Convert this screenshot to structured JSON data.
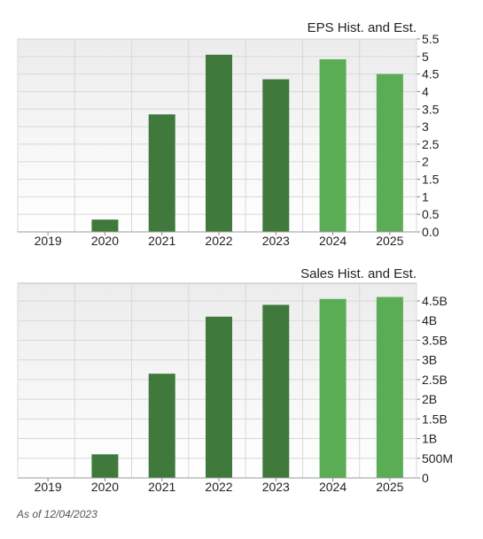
{
  "footer": {
    "as_of": "As of 12/04/2023"
  },
  "colors": {
    "historical": "#3f7a3c",
    "estimate": "#5aac55",
    "grid": "#d8d8d8",
    "frame": "#bfbfbf"
  },
  "chart_data": [
    {
      "type": "bar",
      "title": "EPS Hist. and Est.",
      "categories": [
        "2019",
        "2020",
        "2021",
        "2022",
        "2023",
        "2024",
        "2025"
      ],
      "values": [
        0,
        0.35,
        3.35,
        5.05,
        4.35,
        4.92,
        4.5
      ],
      "kind": [
        "historical",
        "historical",
        "historical",
        "historical",
        "historical",
        "estimate",
        "estimate"
      ],
      "ylim": [
        0,
        5.5
      ],
      "yticks": [
        0,
        0.5,
        1,
        1.5,
        2,
        2.5,
        3,
        3.5,
        4,
        4.5,
        5,
        5.5
      ],
      "yticklabels": [
        "0.0",
        "0.5",
        "1",
        "1.5",
        "2",
        "2.5",
        "3",
        "3.5",
        "4",
        "4.5",
        "5",
        "5.5"
      ],
      "xlabel": "",
      "ylabel": "",
      "grid": true,
      "axis_position": "right"
    },
    {
      "type": "bar",
      "title": "Sales Hist. and Est.",
      "categories": [
        "2019",
        "2020",
        "2021",
        "2022",
        "2023",
        "2024",
        "2025"
      ],
      "values": [
        0,
        0.6,
        2.65,
        4.1,
        4.4,
        4.55,
        4.6
      ],
      "kind": [
        "historical",
        "historical",
        "historical",
        "historical",
        "historical",
        "estimate",
        "estimate"
      ],
      "ylim": [
        0,
        4.5
      ],
      "yticks": [
        0,
        0.5,
        1,
        1.5,
        2,
        2.5,
        3,
        3.5,
        4,
        4.5
      ],
      "yticklabels": [
        "0",
        "500M",
        "1B",
        "1.5B",
        "2B",
        "2.5B",
        "3B",
        "3.5B",
        "4B",
        "4.5B"
      ],
      "units": "B",
      "xlabel": "",
      "ylabel": "",
      "grid": true,
      "axis_position": "right"
    }
  ]
}
